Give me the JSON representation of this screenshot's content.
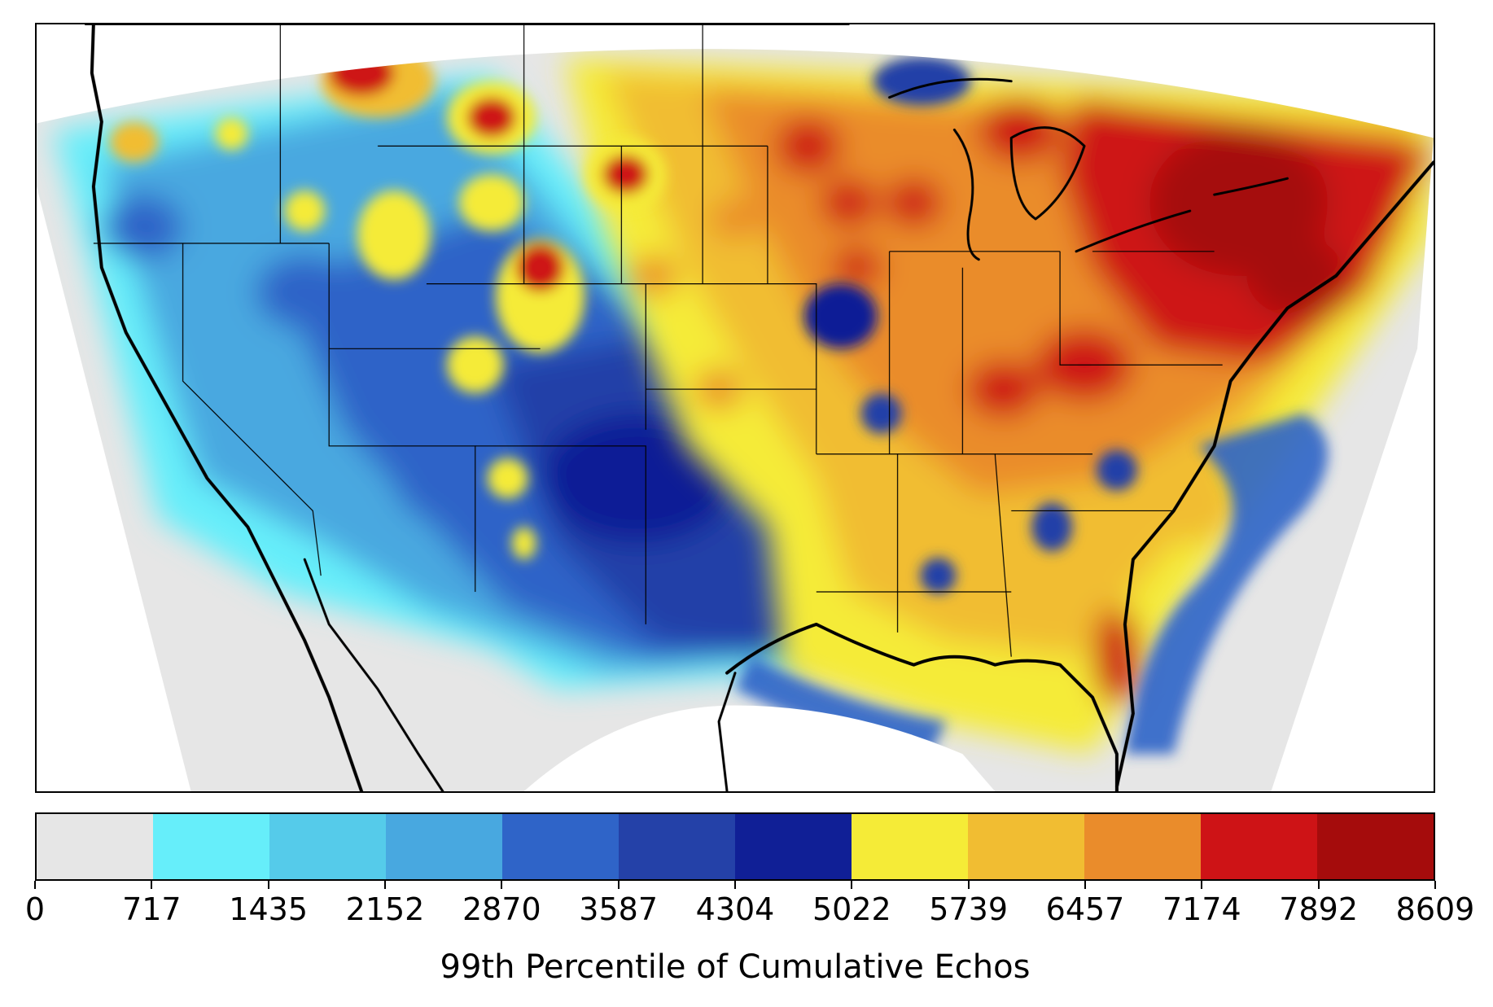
{
  "colorbar": {
    "label": "99th Percentile of Cumulative Echos",
    "ticks": [
      "0",
      "717",
      "1435",
      "2152",
      "2870",
      "3587",
      "4304",
      "5022",
      "5739",
      "6457",
      "7174",
      "7892",
      "8609"
    ],
    "colors": [
      "#e6e6e6",
      "#66eefa",
      "#55cbea",
      "#48a8e0",
      "#2f64c8",
      "#2441a8",
      "#101f96",
      "#f5eb37",
      "#f1bd32",
      "#ea8c2b",
      "#ce1316",
      "#a50c0c"
    ]
  },
  "map": {
    "description_colors": {
      "outside_domain": "#ffffff",
      "border_lines": "#000000"
    }
  }
}
